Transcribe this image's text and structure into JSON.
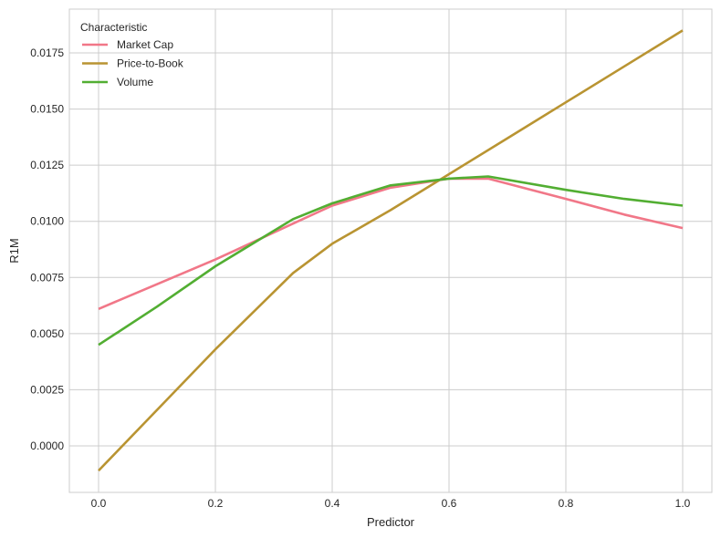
{
  "chart_data": {
    "type": "line",
    "title": "",
    "xlabel": "Predictor",
    "ylabel": "R1M",
    "xlim": [
      -0.05,
      1.05
    ],
    "ylim": [
      -0.0022,
      0.0195
    ],
    "xticks": [
      "0.0",
      "0.2",
      "0.4",
      "0.6",
      "0.8",
      "1.0"
    ],
    "xtick_values": [
      0.0,
      0.2,
      0.4,
      0.6,
      0.8,
      1.0
    ],
    "yticks": [
      "0.0000",
      "0.0025",
      "0.0050",
      "0.0075",
      "0.0100",
      "0.0125",
      "0.0150",
      "0.0175"
    ],
    "ytick_values": [
      0.0,
      0.0025,
      0.005,
      0.0075,
      0.01,
      0.0125,
      0.015,
      0.0175
    ],
    "grid": true,
    "legend": {
      "title": "Characteristic",
      "position": "upper left"
    },
    "series": [
      {
        "name": "Market Cap",
        "color": "#f17788",
        "x": [
          0.0,
          0.1,
          0.2,
          0.333,
          0.4,
          0.5,
          0.6,
          0.667,
          0.8,
          0.9,
          1.0
        ],
        "values": [
          0.0061,
          0.0072,
          0.0083,
          0.0099,
          0.0107,
          0.0115,
          0.0119,
          0.0119,
          0.011,
          0.0103,
          0.0097
        ]
      },
      {
        "name": "Price-to-Book",
        "color": "#b99432",
        "x": [
          0.0,
          0.1,
          0.2,
          0.333,
          0.4,
          0.5,
          0.6,
          0.7,
          0.8,
          0.9,
          1.0
        ],
        "values": [
          -0.0011,
          0.0016,
          0.0043,
          0.0077,
          0.009,
          0.0105,
          0.0121,
          0.0137,
          0.0153,
          0.0169,
          0.0185
        ]
      },
      {
        "name": "Volume",
        "color": "#52ae32",
        "x": [
          0.0,
          0.1,
          0.2,
          0.333,
          0.4,
          0.5,
          0.6,
          0.667,
          0.8,
          0.9,
          1.0
        ],
        "values": [
          0.0045,
          0.0062,
          0.008,
          0.0101,
          0.0108,
          0.0116,
          0.0119,
          0.012,
          0.0114,
          0.011,
          0.0107
        ]
      }
    ]
  },
  "style": {
    "grid_color": "#cccccc",
    "frame_color": "#cccccc",
    "text_color": "#262626"
  }
}
